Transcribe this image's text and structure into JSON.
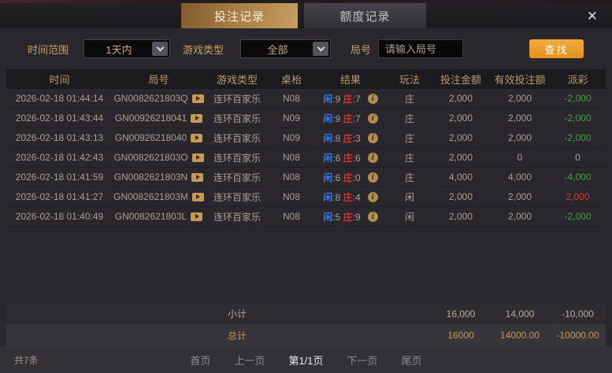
{
  "window": {
    "tabs": [
      {
        "label": "投注记录",
        "active": true
      },
      {
        "label": "额度记录",
        "active": false
      }
    ],
    "close_label": "✕"
  },
  "filters": {
    "time_range_label": "时间范围",
    "time_range_value": "1天内",
    "game_type_label": "游戏类型",
    "game_type_value": "全部",
    "round_label": "局号",
    "round_placeholder": "请输入局号",
    "search_label": "查找"
  },
  "table": {
    "headers": [
      "时间",
      "局号",
      "游戏类型",
      "桌枱",
      "结果",
      "玩法",
      "投注金额",
      "有效投注额",
      "派彩"
    ],
    "result_player_label": "闲",
    "result_banker_label": "庄",
    "rows": [
      {
        "time": "2026-02-18 01:44:14",
        "round": "GN0082621803Q",
        "game": "连环百家乐",
        "table": "N08",
        "player": "9",
        "banker": "7",
        "play": "庄",
        "bet": "2,000",
        "valid": "2,000",
        "payout": "-2,000",
        "payout_type": "negative"
      },
      {
        "time": "2026-02-18 01:43:44",
        "round": "GN00926218041",
        "game": "连环百家乐",
        "table": "N09",
        "player": "9",
        "banker": "7",
        "play": "庄",
        "bet": "2,000",
        "valid": "2,000",
        "payout": "-2,000",
        "payout_type": "negative"
      },
      {
        "time": "2026-02-18 01:43:13",
        "round": "GN00926218040",
        "game": "连环百家乐",
        "table": "N09",
        "player": "8",
        "banker": "3",
        "play": "庄",
        "bet": "2,000",
        "valid": "2,000",
        "payout": "-2,000",
        "payout_type": "negative"
      },
      {
        "time": "2026-02-18 01:42:43",
        "round": "GN0082621803O",
        "game": "连环百家乐",
        "table": "N08",
        "player": "6",
        "banker": "6",
        "play": "庄",
        "bet": "2,000",
        "valid": "0",
        "payout": "0",
        "payout_type": "neutral"
      },
      {
        "time": "2026-02-18 01:41:59",
        "round": "GN0082621803N",
        "game": "连环百家乐",
        "table": "N08",
        "player": "6",
        "banker": "0",
        "play": "庄",
        "bet": "4,000",
        "valid": "4,000",
        "payout": "-4,000",
        "payout_type": "negative"
      },
      {
        "time": "2026-02-18 01:41:27",
        "round": "GN0082621803M",
        "game": "连环百家乐",
        "table": "N08",
        "player": "8",
        "banker": "4",
        "play": "闲",
        "bet": "2,000",
        "valid": "2,000",
        "payout": "2,000",
        "payout_type": "positive"
      },
      {
        "time": "2026-02-18 01:40:49",
        "round": "GN0082621803L",
        "game": "连环百家乐",
        "table": "N08",
        "player": "5",
        "banker": "9",
        "play": "闲",
        "bet": "2,000",
        "valid": "2,000",
        "payout": "-2,000",
        "payout_type": "negative"
      }
    ],
    "subtotal": {
      "label": "小计",
      "bet": "16,000",
      "valid": "14,000",
      "payout": "-10,000"
    },
    "total": {
      "label": "总计",
      "bet": "16000",
      "valid": "14000.00",
      "payout": "-10000.00"
    }
  },
  "pagination": {
    "count": "共7条",
    "first": "首页",
    "prev": "上一页",
    "current": "第1/1页",
    "next": "下一页",
    "last": "尾页"
  },
  "colors": {
    "accent_gold": "#c89d5e",
    "button_orange": "#eb9c2e",
    "player_blue": "#3a78e8",
    "banker_red": "#d63030",
    "loss_green": "#46a046",
    "win_red": "#e03232"
  }
}
